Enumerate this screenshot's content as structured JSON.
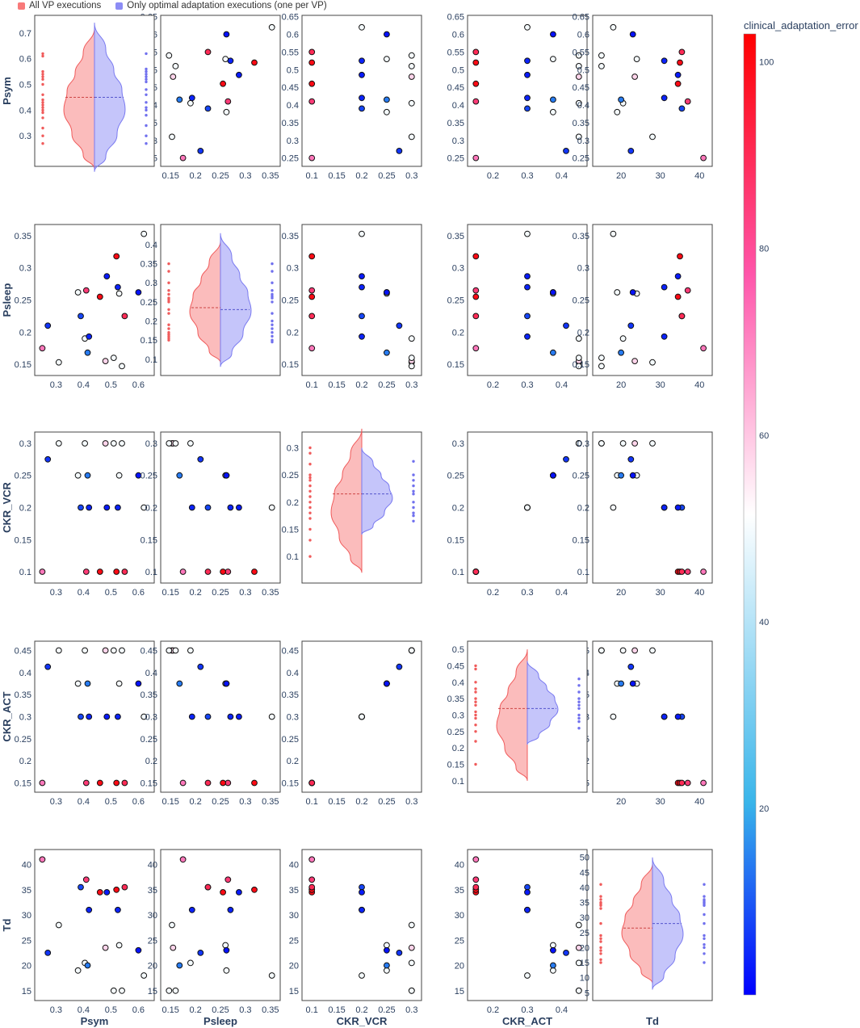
{
  "chart_data": {
    "type": "scatter-matrix",
    "legend": {
      "position": "top-left",
      "entries": [
        {
          "label": "All VP executions",
          "color": "#f87a7a"
        },
        {
          "label": "Only optimal adaptation executions (one per VP)",
          "color": "#8c8cf5"
        }
      ]
    },
    "variables": [
      "Psym",
      "Psleep",
      "CKR_VCR",
      "CKR_ACT",
      "Td"
    ],
    "x_tick_labels": [
      [
        "0.3",
        "0.4",
        "0.5",
        "0.6"
      ],
      [
        "0.15",
        "0.2",
        "0.25",
        "0.3",
        "0.35"
      ],
      [
        "0.1",
        "0.15",
        "0.2",
        "0.25",
        "0.3"
      ],
      [
        "0.2",
        "0.3",
        "0.4"
      ],
      [
        "20",
        "30",
        "40"
      ]
    ],
    "y_tick_labels": [
      [
        "0.25",
        "0.3",
        "0.35",
        "0.4",
        "0.45",
        "0.5",
        "0.55",
        "0.6",
        "0.65"
      ],
      [
        "0.15",
        "0.2",
        "0.25",
        "0.3",
        "0.35"
      ],
      [
        "0.1",
        "0.15",
        "0.2",
        "0.25",
        "0.3"
      ],
      [
        "0.15",
        "0.2",
        "0.25",
        "0.3",
        "0.35",
        "0.4",
        "0.45"
      ],
      [
        "15",
        "20",
        "25",
        "30",
        "35",
        "40"
      ]
    ],
    "diag_y_tick_labels": [
      [
        "0.3",
        "0.4",
        "0.5",
        "0.6",
        "0.7"
      ],
      [
        "0.1",
        "0.15",
        "0.2",
        "0.25",
        "0.3",
        "0.35",
        "0.4"
      ],
      [
        "0.1",
        "0.15",
        "0.2",
        "0.25",
        "0.3"
      ],
      [
        "0.1",
        "0.15",
        "0.2",
        "0.25",
        "0.3",
        "0.35",
        "0.4",
        "0.45",
        "0.5"
      ],
      [
        "5",
        "10",
        "15",
        "20",
        "25",
        "30",
        "35",
        "40",
        "45",
        "50"
      ]
    ],
    "axis_ranges": {
      "Psym": [
        0.24,
        0.64
      ],
      "Psleep": [
        0.14,
        0.36
      ],
      "CKR_VCR": [
        0.09,
        0.31
      ],
      "CKR_ACT": [
        0.14,
        0.46
      ],
      "Td": [
        14,
        42
      ]
    },
    "diag_ranges": {
      "Psym": [
        0.2,
        0.75
      ],
      "Psleep": [
        0.07,
        0.44
      ],
      "CKR_VCR": [
        0.06,
        0.32
      ],
      "CKR_ACT": [
        0.08,
        0.51
      ],
      "Td": [
        4,
        51
      ]
    },
    "x_axis_titles": [
      "Psym",
      "Psleep",
      "CKR_VCR",
      "CKR_ACT",
      "Td"
    ],
    "y_axis_titles": [
      "Psym",
      "Psleep",
      "CKR_VCR",
      "CKR_ACT",
      "Td"
    ],
    "colorbar": {
      "title": "clinical_adaptation_error",
      "range": [
        0,
        103
      ],
      "tick_labels": [
        "20",
        "40",
        "60",
        "80",
        "100"
      ],
      "colorscale": [
        "#0000ff",
        "#39b5ea",
        "#ffffff",
        "#ff55aa",
        "#ff0000"
      ]
    },
    "violins": [
      {
        "var": "Psym",
        "all_median": 0.45,
        "opt_median": 0.45,
        "all_range": [
          0.17,
          0.72
        ],
        "opt_range": [
          0.16,
          0.74
        ],
        "all_points": [
          0.62,
          0.61,
          0.55,
          0.54,
          0.53,
          0.52,
          0.5,
          0.46,
          0.44,
          0.43,
          0.42,
          0.41,
          0.4,
          0.39,
          0.37,
          0.33,
          0.3,
          0.27
        ],
        "opt_points": [
          0.62,
          0.56,
          0.55,
          0.54,
          0.53,
          0.52,
          0.51,
          0.48,
          0.46,
          0.43,
          0.41,
          0.4,
          0.38,
          0.34,
          0.3,
          0.27
        ]
      },
      {
        "var": "Psleep",
        "all_median": 0.235,
        "opt_median": 0.23,
        "all_range": [
          0.09,
          0.41
        ],
        "opt_range": [
          0.08,
          0.43
        ],
        "all_points": [
          0.35,
          0.33,
          0.3,
          0.28,
          0.27,
          0.26,
          0.255,
          0.25,
          0.23,
          0.22,
          0.19,
          0.18,
          0.17,
          0.165,
          0.16,
          0.155,
          0.15
        ],
        "opt_points": [
          0.35,
          0.33,
          0.3,
          0.28,
          0.27,
          0.265,
          0.26,
          0.25,
          0.22,
          0.2,
          0.19,
          0.18,
          0.17,
          0.16,
          0.15,
          0.145
        ]
      },
      {
        "var": "CKR_VCR",
        "all_median": 0.215,
        "opt_median": 0.215,
        "all_range": [
          0.07,
          0.335
        ],
        "opt_range": [
          0.14,
          0.3
        ],
        "all_points": [
          0.3,
          0.29,
          0.27,
          0.25,
          0.245,
          0.24,
          0.23,
          0.22,
          0.21,
          0.2,
          0.19,
          0.18,
          0.17,
          0.15,
          0.13,
          0.1
        ],
        "opt_points": [
          0.275,
          0.25,
          0.24,
          0.23,
          0.22,
          0.215,
          0.2,
          0.19,
          0.18,
          0.175,
          0.165
        ]
      },
      {
        "var": "CKR_ACT",
        "all_median": 0.32,
        "opt_median": 0.32,
        "all_range": [
          0.1,
          0.5
        ],
        "opt_range": [
          0.21,
          0.465
        ],
        "all_points": [
          0.45,
          0.44,
          0.4,
          0.38,
          0.37,
          0.35,
          0.34,
          0.33,
          0.31,
          0.3,
          0.29,
          0.27,
          0.25,
          0.22,
          0.15
        ],
        "opt_points": [
          0.41,
          0.39,
          0.37,
          0.35,
          0.34,
          0.33,
          0.32,
          0.3,
          0.29,
          0.28,
          0.26
        ]
      },
      {
        "var": "Td",
        "all_median": 26.5,
        "opt_median": 28,
        "all_range": [
          8,
          48
        ],
        "opt_range": [
          6,
          50
        ],
        "all_points": [
          41,
          37,
          36,
          35,
          34.5,
          34,
          33,
          28,
          24,
          23,
          22,
          20,
          19,
          18,
          16,
          15
        ],
        "opt_points": [
          41,
          37,
          36,
          35.5,
          35,
          34.5,
          34,
          31,
          28,
          24,
          23,
          21,
          20,
          18,
          15
        ]
      }
    ],
    "data_points": [
      {
        "Psym": 0.25,
        "Psleep": 0.175,
        "CKR_VCR": 0.1,
        "CKR_ACT": 0.15,
        "Td": 41,
        "error": 72
      },
      {
        "Psym": 0.27,
        "Psleep": 0.21,
        "CKR_VCR": 0.275,
        "CKR_ACT": 0.413,
        "Td": 22.5,
        "error": 6
      },
      {
        "Psym": 0.31,
        "Psleep": 0.153,
        "CKR_VCR": 0.3,
        "CKR_ACT": 0.45,
        "Td": 28,
        "error": 50
      },
      {
        "Psym": 0.38,
        "Psleep": 0.262,
        "CKR_VCR": 0.25,
        "CKR_ACT": 0.375,
        "Td": 19,
        "error": 50
      },
      {
        "Psym": 0.39,
        "Psleep": 0.225,
        "CKR_VCR": 0.2,
        "CKR_ACT": 0.3,
        "Td": 35.5,
        "error": 8
      },
      {
        "Psym": 0.405,
        "Psleep": 0.19,
        "CKR_VCR": 0.3,
        "CKR_ACT": 0.45,
        "Td": 20.5,
        "error": 50
      },
      {
        "Psym": 0.41,
        "Psleep": 0.265,
        "CKR_VCR": 0.1,
        "CKR_ACT": 0.15,
        "Td": 37,
        "error": 85
      },
      {
        "Psym": 0.415,
        "Psleep": 0.168,
        "CKR_VCR": 0.25,
        "CKR_ACT": 0.375,
        "Td": 20,
        "error": 14
      },
      {
        "Psym": 0.42,
        "Psleep": 0.193,
        "CKR_VCR": 0.2,
        "CKR_ACT": 0.3,
        "Td": 31,
        "error": 4
      },
      {
        "Psym": 0.46,
        "Psleep": 0.255,
        "CKR_VCR": 0.1,
        "CKR_ACT": 0.15,
        "Td": 34.5,
        "error": 100
      },
      {
        "Psym": 0.48,
        "Psleep": 0.155,
        "CKR_VCR": 0.3,
        "CKR_ACT": 0.45,
        "Td": 23.5,
        "error": 58
      },
      {
        "Psym": 0.485,
        "Psleep": 0.287,
        "CKR_VCR": 0.2,
        "CKR_ACT": 0.3,
        "Td": 34.5,
        "error": 3
      },
      {
        "Psym": 0.51,
        "Psleep": 0.16,
        "CKR_VCR": 0.3,
        "CKR_ACT": 0.45,
        "Td": 15,
        "error": 50
      },
      {
        "Psym": 0.52,
        "Psleep": 0.318,
        "CKR_VCR": 0.1,
        "CKR_ACT": 0.15,
        "Td": 35,
        "error": 100
      },
      {
        "Psym": 0.525,
        "Psleep": 0.27,
        "CKR_VCR": 0.2,
        "CKR_ACT": 0.3,
        "Td": 31,
        "error": 4
      },
      {
        "Psym": 0.53,
        "Psleep": 0.26,
        "CKR_VCR": 0.25,
        "CKR_ACT": 0.375,
        "Td": 24,
        "error": 50
      },
      {
        "Psym": 0.54,
        "Psleep": 0.147,
        "CKR_VCR": 0.3,
        "CKR_ACT": 0.45,
        "Td": 15,
        "error": 50
      },
      {
        "Psym": 0.55,
        "Psleep": 0.225,
        "CKR_VCR": 0.1,
        "CKR_ACT": 0.15,
        "Td": 35.5,
        "error": 90
      },
      {
        "Psym": 0.62,
        "Psleep": 0.353,
        "CKR_VCR": 0.2,
        "CKR_ACT": 0.3,
        "Td": 18,
        "error": 50
      },
      {
        "Psym": 0.6,
        "Psleep": 0.262,
        "CKR_VCR": 0.25,
        "CKR_ACT": 0.375,
        "Td": 23,
        "error": 2
      }
    ]
  }
}
